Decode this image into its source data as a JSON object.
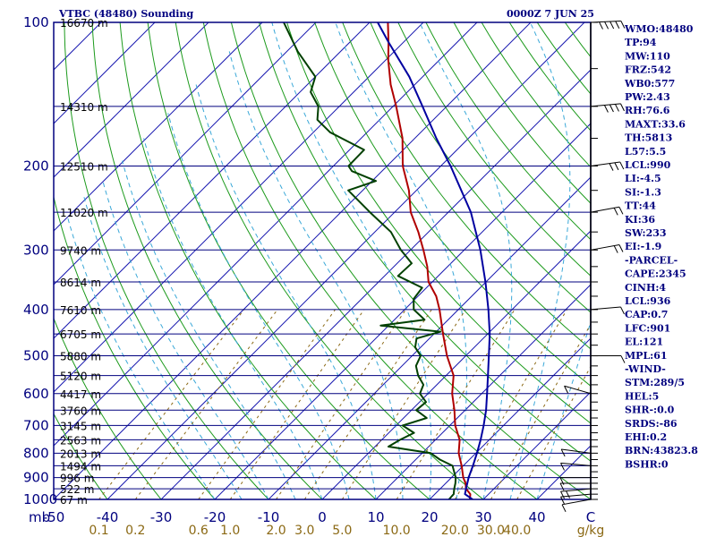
{
  "header": {
    "station": "VTBC (48480) Sounding",
    "time": "0000Z  7 JUN 25"
  },
  "colors": {
    "axis": "#00007f",
    "isotherm": "#1a1ab0",
    "dry_adiabat": "#1c9a1c",
    "moist_adiabat": "#3aa8d8",
    "mixing_ratio": "#8b6914",
    "temperature": "#b00000",
    "dewpoint": "#004000",
    "parcel": "#0000a0"
  },
  "indices": [
    "WMO:48480",
    "TP:94",
    "MW:110",
    "FRZ:542",
    "WB0:577",
    "PW:2.43",
    "RH:76.6",
    "MAXT:33.6",
    "TH:5813",
    "L57:5.5",
    "LCL:990",
    "LI:-4.5",
    "SI:-1.3",
    "TT:44",
    "KI:36",
    "SW:233",
    "EI:-1.9",
    "-PARCEL-",
    "CAPE:2345",
    "CINH:4",
    "LCL:936",
    "CAP:0.7",
    "LFC:901",
    "EL:121",
    "MPL:61",
    "-WIND-",
    "STM:289/5",
    "HEL:5",
    "SHR-:0.0",
    "SRDS:-86",
    "EHI:0.2",
    "BRN:43823.8",
    "BSHR:0"
  ],
  "chart_data": {
    "type": "line",
    "title": "VTBC (48480) Sounding",
    "x_unit": "C",
    "y_unit": "mb",
    "mixing_unit": "g/kg",
    "xlim": [
      -50,
      50
    ],
    "ylim": [
      1000,
      100
    ],
    "log_y": true,
    "skew": true,
    "pressure_ticks": [
      "100",
      "200",
      "300",
      "400",
      "500",
      "600",
      "700",
      "800",
      "900",
      "1000"
    ],
    "temp_ticks": [
      "-50",
      "-40",
      "-30",
      "-20",
      "-10",
      "0",
      "10",
      "20",
      "30",
      "40",
      "C"
    ],
    "mixing_ratio_ticks": [
      "0.1",
      "0.2",
      "0.6",
      "1.0",
      "2.0",
      "3.0",
      "5.0",
      "10.0",
      "20.0",
      "30.0",
      "40.0"
    ],
    "height_labels": [
      {
        "p": 100,
        "h": "16670 m"
      },
      {
        "p": 150,
        "h": "14310 m"
      },
      {
        "p": 200,
        "h": "12510 m"
      },
      {
        "p": 250,
        "h": "11020 m"
      },
      {
        "p": 300,
        "h": "9740 m"
      },
      {
        "p": 350,
        "h": "8614 m"
      },
      {
        "p": 400,
        "h": "7610 m"
      },
      {
        "p": 450,
        "h": "6705 m"
      },
      {
        "p": 500,
        "h": "5880 m"
      },
      {
        "p": 550,
        "h": "5120 m"
      },
      {
        "p": 600,
        "h": "4417 m"
      },
      {
        "p": 650,
        "h": "3760 m"
      },
      {
        "p": 700,
        "h": "3145 m"
      },
      {
        "p": 750,
        "h": "2563 m"
      },
      {
        "p": 800,
        "h": "2013 m"
      },
      {
        "p": 850,
        "h": "1494 m"
      },
      {
        "p": 900,
        "h": "996 m"
      },
      {
        "p": 950,
        "h": "522 m"
      },
      {
        "p": 1000,
        "h": "67 m"
      }
    ],
    "series": [
      {
        "key": "temperature",
        "points": [
          [
            1000,
            27.5
          ],
          [
            975,
            26.6
          ],
          [
            950,
            24.8
          ],
          [
            925,
            23.7
          ],
          [
            900,
            22.2
          ],
          [
            850,
            19.7
          ],
          [
            800,
            16.8
          ],
          [
            750,
            14.5
          ],
          [
            700,
            11.0
          ],
          [
            650,
            8.0
          ],
          [
            600,
            4.5
          ],
          [
            550,
            1.4
          ],
          [
            500,
            -3.5
          ],
          [
            450,
            -8.3
          ],
          [
            400,
            -13.5
          ],
          [
            375,
            -16.6
          ],
          [
            350,
            -20.7
          ],
          [
            325,
            -23.8
          ],
          [
            300,
            -27.6
          ],
          [
            275,
            -31.9
          ],
          [
            250,
            -37.0
          ],
          [
            225,
            -41.4
          ],
          [
            200,
            -47.1
          ],
          [
            175,
            -52.3
          ],
          [
            150,
            -59.4
          ],
          [
            135,
            -64.5
          ],
          [
            120,
            -69.5
          ],
          [
            110,
            -72.8
          ],
          [
            100,
            -76.6
          ]
        ]
      },
      {
        "key": "dewpoint",
        "points": [
          [
            1000,
            23.6
          ],
          [
            975,
            23.5
          ],
          [
            950,
            22.6
          ],
          [
            925,
            21.8
          ],
          [
            900,
            20.8
          ],
          [
            850,
            18.0
          ],
          [
            825,
            14.5
          ],
          [
            800,
            11.6
          ],
          [
            775,
            2.5
          ],
          [
            750,
            3.4
          ],
          [
            725,
            4.7
          ],
          [
            700,
            1.2
          ],
          [
            675,
            4.3
          ],
          [
            650,
            0.9
          ],
          [
            625,
            1.2
          ],
          [
            600,
            -1.5
          ],
          [
            575,
            -2.5
          ],
          [
            550,
            -5.2
          ],
          [
            525,
            -7.4
          ],
          [
            500,
            -8.4
          ],
          [
            480,
            -11.0
          ],
          [
            460,
            -12.4
          ],
          [
            445,
            -9.2
          ],
          [
            432,
            -21.5
          ],
          [
            420,
            -14.4
          ],
          [
            400,
            -18.3
          ],
          [
            380,
            -20.3
          ],
          [
            360,
            -20.8
          ],
          [
            340,
            -27.5
          ],
          [
            320,
            -27.3
          ],
          [
            300,
            -31.8
          ],
          [
            275,
            -37.0
          ],
          [
            250,
            -44.6
          ],
          [
            225,
            -52.7
          ],
          [
            215,
            -49.3
          ],
          [
            205,
            -55.6
          ],
          [
            200,
            -57.2
          ],
          [
            185,
            -57.3
          ],
          [
            170,
            -66.9
          ],
          [
            160,
            -71.6
          ],
          [
            150,
            -73.9
          ],
          [
            140,
            -78.0
          ],
          [
            130,
            -80.0
          ],
          [
            115,
            -88.0
          ],
          [
            100,
            -96.0
          ]
        ]
      },
      {
        "key": "parcel",
        "points": [
          [
            1000,
            28.0
          ],
          [
            975,
            25.6
          ],
          [
            950,
            24.8
          ],
          [
            900,
            23.2
          ],
          [
            850,
            21.8
          ],
          [
            800,
            20.2
          ],
          [
            750,
            18.4
          ],
          [
            700,
            16.3
          ],
          [
            650,
            13.9
          ],
          [
            600,
            11.0
          ],
          [
            550,
            7.8
          ],
          [
            500,
            4.3
          ],
          [
            450,
            0.4
          ],
          [
            400,
            -4.4
          ],
          [
            350,
            -10.1
          ],
          [
            300,
            -17.0
          ],
          [
            250,
            -25.8
          ],
          [
            200,
            -38.2
          ],
          [
            175,
            -46.0
          ],
          [
            150,
            -54.5
          ],
          [
            130,
            -62.5
          ],
          [
            110,
            -72.8
          ],
          [
            100,
            -78.5
          ]
        ]
      }
    ],
    "wind": [
      {
        "p": 1000,
        "dir": 250,
        "kt": 5
      },
      {
        "p": 975,
        "dir": 260,
        "kt": 6
      },
      {
        "p": 950,
        "dir": 260,
        "kt": 8
      },
      {
        "p": 925,
        "dir": 270,
        "kt": 7
      },
      {
        "p": 900,
        "dir": 270,
        "kt": 5
      },
      {
        "p": 850,
        "dir": 280,
        "kt": 5
      },
      {
        "p": 800,
        "dir": 285,
        "kt": 5
      },
      {
        "p": 600,
        "dir": 300,
        "kt": 3
      },
      {
        "p": 500,
        "dir": 90,
        "kt": 5
      },
      {
        "p": 400,
        "dir": 80,
        "kt": 5
      },
      {
        "p": 300,
        "dir": 70,
        "kt": 10
      },
      {
        "p": 250,
        "dir": 70,
        "kt": 10
      },
      {
        "p": 200,
        "dir": 75,
        "kt": 15
      },
      {
        "p": 150,
        "dir": 80,
        "kt": 20
      },
      {
        "p": 100,
        "dir": 85,
        "kt": 25
      }
    ]
  }
}
